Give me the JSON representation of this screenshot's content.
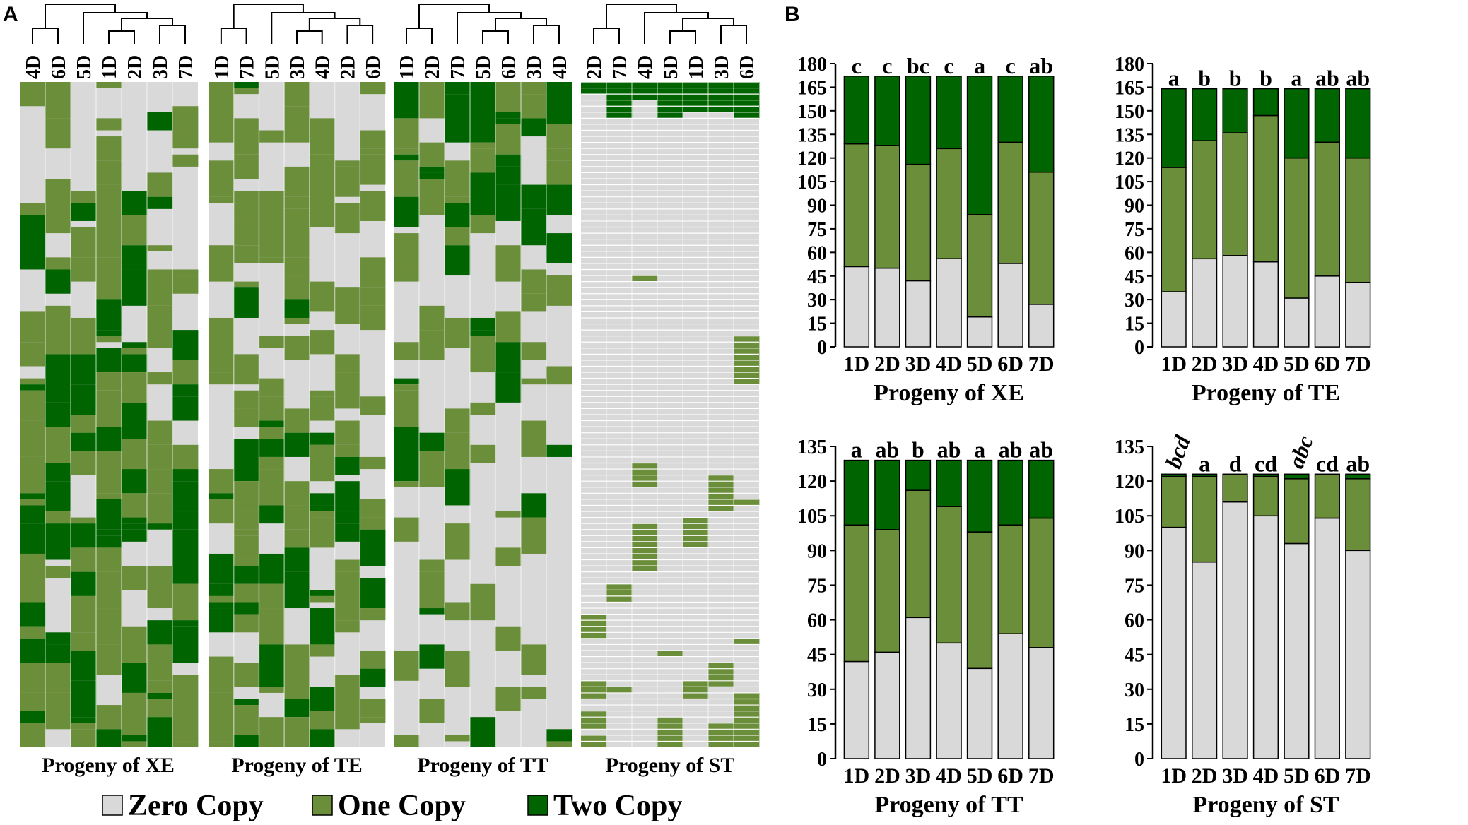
{
  "panel_a": {
    "letter": "A",
    "heatmaps": [
      {
        "title": "Progeny of XE",
        "columns": [
          "4D",
          "6D",
          "5D",
          "1D",
          "2D",
          "3D",
          "7D"
        ]
      },
      {
        "title": "Progeny of TE",
        "columns": [
          "1D",
          "7D",
          "5D",
          "3D",
          "4D",
          "2D",
          "6D"
        ]
      },
      {
        "title": "Progeny of TT",
        "columns": [
          "1D",
          "2D",
          "7D",
          "5D",
          "6D",
          "3D",
          "4D"
        ]
      },
      {
        "title": "Progeny of ST",
        "columns": [
          "2D",
          "7D",
          "4D",
          "5D",
          "1D",
          "3D",
          "6D"
        ]
      }
    ],
    "legend": [
      {
        "label": "Zero Copy",
        "color": "#d9d9d9"
      },
      {
        "label": "One Copy",
        "color": "#6b8e3a"
      },
      {
        "label": "Two Copy",
        "color": "#006400"
      }
    ]
  },
  "colors": {
    "zero": "#d9d9d9",
    "one": "#6b8e3a",
    "two": "#006400"
  },
  "chart_data": [
    {
      "type": "bar",
      "stacked": true,
      "panel": "B",
      "title": "",
      "xlabel": "Progeny of XE",
      "ylabel": "",
      "categories": [
        "1D",
        "2D",
        "3D",
        "4D",
        "5D",
        "6D",
        "7D"
      ],
      "ylim": [
        0,
        180
      ],
      "yticks": [
        0,
        15,
        30,
        45,
        60,
        75,
        90,
        105,
        120,
        135,
        150,
        165,
        180
      ],
      "series": [
        {
          "name": "Zero Copy",
          "values": [
            51,
            50,
            42,
            56,
            19,
            53,
            27
          ]
        },
        {
          "name": "One Copy",
          "values": [
            78,
            78,
            74,
            70,
            65,
            77,
            84
          ]
        },
        {
          "name": "Two Copy",
          "values": [
            43,
            44,
            56,
            46,
            88,
            42,
            61
          ]
        }
      ],
      "letters": [
        "c",
        "c",
        "bc",
        "c",
        "a",
        "c",
        "ab"
      ],
      "italic_letters": [
        false,
        false,
        false,
        false,
        false,
        false,
        false
      ]
    },
    {
      "type": "bar",
      "stacked": true,
      "title": "",
      "xlabel": "Progeny of TE",
      "ylabel": "",
      "categories": [
        "1D",
        "2D",
        "3D",
        "4D",
        "5D",
        "6D",
        "7D"
      ],
      "ylim": [
        0,
        180
      ],
      "yticks": [
        0,
        15,
        30,
        45,
        60,
        75,
        90,
        105,
        120,
        135,
        150,
        165,
        180
      ],
      "series": [
        {
          "name": "Zero Copy",
          "values": [
            35,
            56,
            58,
            54,
            31,
            45,
            41
          ]
        },
        {
          "name": "One Copy",
          "values": [
            79,
            75,
            78,
            93,
            89,
            85,
            79
          ]
        },
        {
          "name": "Two Copy",
          "values": [
            50,
            33,
            28,
            17,
            44,
            34,
            44
          ]
        }
      ],
      "letters": [
        "a",
        "b",
        "b",
        "b",
        "a",
        "ab",
        "ab"
      ],
      "italic_letters": [
        false,
        false,
        false,
        false,
        false,
        false,
        false
      ]
    },
    {
      "type": "bar",
      "stacked": true,
      "title": "",
      "xlabel": "Progeny of TT",
      "ylabel": "",
      "categories": [
        "1D",
        "2D",
        "3D",
        "4D",
        "5D",
        "6D",
        "7D"
      ],
      "ylim": [
        0,
        135
      ],
      "yticks": [
        0,
        15,
        30,
        45,
        60,
        75,
        90,
        105,
        120,
        135
      ],
      "series": [
        {
          "name": "Zero Copy",
          "values": [
            42,
            46,
            61,
            50,
            39,
            54,
            48
          ]
        },
        {
          "name": "One Copy",
          "values": [
            59,
            53,
            55,
            59,
            59,
            47,
            56
          ]
        },
        {
          "name": "Two Copy",
          "values": [
            28,
            30,
            13,
            20,
            31,
            28,
            25
          ]
        }
      ],
      "letters": [
        "a",
        "ab",
        "b",
        "ab",
        "a",
        "ab",
        "ab"
      ],
      "italic_letters": [
        false,
        false,
        false,
        false,
        false,
        false,
        false
      ]
    },
    {
      "type": "bar",
      "stacked": true,
      "title": "",
      "xlabel": "Progeny of ST",
      "ylabel": "",
      "categories": [
        "1D",
        "2D",
        "3D",
        "4D",
        "5D",
        "6D",
        "7D"
      ],
      "ylim": [
        0,
        135
      ],
      "yticks": [
        0,
        15,
        30,
        45,
        60,
        75,
        90,
        105,
        120,
        135
      ],
      "series": [
        {
          "name": "Zero Copy",
          "values": [
            100,
            85,
            111,
            105,
            93,
            104,
            90
          ]
        },
        {
          "name": "One Copy",
          "values": [
            22,
            37,
            12,
            17,
            28,
            19,
            31
          ]
        },
        {
          "name": "Two Copy",
          "values": [
            1,
            1,
            0,
            1,
            2,
            0,
            2
          ]
        }
      ],
      "letters": [
        "bcd",
        "a",
        "d",
        "cd",
        "abc",
        "cd",
        "ab"
      ],
      "italic_letters": [
        true,
        false,
        false,
        false,
        true,
        false,
        false
      ]
    }
  ],
  "panel_b": {
    "letter": "B"
  }
}
